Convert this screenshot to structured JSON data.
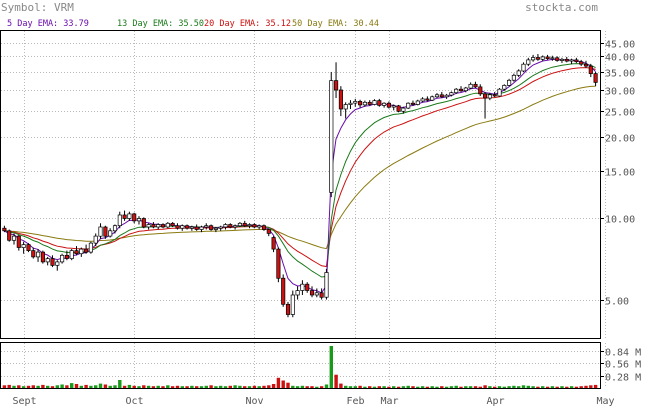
{
  "header": {
    "symbol_label": "Symbol: VRM",
    "site": "stockta.com"
  },
  "legend": [
    {
      "label": "5 Day EMA: 33.79",
      "color": "#6a0dad"
    },
    {
      "label": "13 Day EMA: 35.50",
      "color": "#1a7a1a"
    },
    {
      "label": "20 Day EMA: 35.12",
      "color": "#cc1111"
    },
    {
      "label": "50 Day EMA: 30.44",
      "color": "#8a7a10"
    }
  ],
  "colors": {
    "up": "#ffffff",
    "down": "#cc1111",
    "volume_up": "#1a9a1a",
    "volume_down": "#cc1111",
    "grid": "#bbbbbb",
    "text": "#555555"
  },
  "chart_data": [
    {
      "type": "candlestick",
      "scale": "log",
      "ylim": [
        3.6,
        48
      ],
      "y_ticks": [
        {
          "value": 45,
          "label": "45.00"
        },
        {
          "value": 40,
          "label": "40.00"
        },
        {
          "value": 35,
          "label": "35.00"
        },
        {
          "value": 30,
          "label": "30.00"
        },
        {
          "value": 25,
          "label": "25.00"
        },
        {
          "value": 20,
          "label": "20.00"
        },
        {
          "value": 15,
          "label": "15.00"
        },
        {
          "value": 10,
          "label": "10.00"
        },
        {
          "value": 5,
          "label": "5.00"
        }
      ],
      "x_ticks": [
        {
          "index": 4,
          "label": "Sept"
        },
        {
          "index": 27,
          "label": "Oct"
        },
        {
          "index": 52,
          "label": "Nov"
        },
        {
          "index": 73,
          "label": "Feb"
        },
        {
          "index": 80,
          "label": "Mar"
        },
        {
          "index": 102,
          "label": "Apr"
        },
        {
          "index": 125,
          "label": "May"
        }
      ],
      "candles": [
        [
          9.2,
          9.4,
          8.9,
          9.0
        ],
        [
          9.0,
          9.1,
          8.2,
          8.3
        ],
        [
          8.3,
          8.8,
          8.0,
          8.6
        ],
        [
          8.6,
          8.7,
          7.6,
          7.8
        ],
        [
          7.8,
          8.2,
          7.4,
          8.0
        ],
        [
          8.0,
          8.1,
          7.5,
          7.6
        ],
        [
          7.6,
          7.8,
          7.1,
          7.2
        ],
        [
          7.2,
          7.7,
          6.9,
          7.5
        ],
        [
          7.5,
          7.6,
          6.8,
          6.9
        ],
        [
          6.9,
          7.2,
          6.7,
          7.1
        ],
        [
          7.1,
          7.3,
          6.6,
          6.7
        ],
        [
          6.7,
          7.0,
          6.4,
          6.9
        ],
        [
          6.9,
          7.4,
          6.8,
          7.3
        ],
        [
          7.3,
          7.6,
          7.0,
          7.1
        ],
        [
          7.1,
          7.7,
          7.0,
          7.6
        ],
        [
          7.6,
          7.9,
          7.3,
          7.4
        ],
        [
          7.4,
          7.8,
          7.2,
          7.7
        ],
        [
          7.7,
          8.0,
          7.4,
          7.5
        ],
        [
          7.5,
          8.2,
          7.4,
          8.1
        ],
        [
          8.1,
          8.8,
          7.9,
          8.6
        ],
        [
          8.6,
          9.6,
          8.4,
          9.3
        ],
        [
          9.3,
          9.4,
          8.4,
          8.6
        ],
        [
          8.6,
          9.2,
          8.5,
          9.0
        ],
        [
          9.0,
          9.5,
          8.8,
          9.4
        ],
        [
          9.4,
          10.6,
          9.2,
          10.3
        ],
        [
          10.3,
          10.7,
          9.8,
          10.0
        ],
        [
          10.0,
          10.6,
          9.8,
          10.4
        ],
        [
          10.4,
          10.5,
          9.6,
          9.8
        ],
        [
          9.8,
          10.2,
          9.5,
          10.0
        ],
        [
          10.0,
          10.1,
          9.2,
          9.3
        ],
        [
          9.3,
          9.6,
          9.1,
          9.5
        ],
        [
          9.5,
          9.7,
          9.2,
          9.3
        ],
        [
          9.3,
          9.6,
          9.1,
          9.5
        ],
        [
          9.5,
          9.6,
          9.2,
          9.3
        ],
        [
          9.3,
          9.7,
          9.2,
          9.6
        ],
        [
          9.6,
          9.7,
          9.3,
          9.4
        ],
        [
          9.4,
          9.6,
          9.1,
          9.2
        ],
        [
          9.2,
          9.5,
          9.0,
          9.4
        ],
        [
          9.4,
          9.5,
          9.1,
          9.2
        ],
        [
          9.2,
          9.4,
          9.0,
          9.3
        ],
        [
          9.3,
          9.5,
          9.0,
          9.1
        ],
        [
          9.1,
          9.4,
          8.9,
          9.3
        ],
        [
          9.3,
          9.6,
          9.1,
          9.4
        ],
        [
          9.4,
          9.5,
          9.0,
          9.1
        ],
        [
          9.1,
          9.3,
          8.9,
          9.2
        ],
        [
          9.2,
          9.4,
          9.0,
          9.3
        ],
        [
          9.3,
          9.6,
          9.1,
          9.5
        ],
        [
          9.5,
          9.6,
          9.2,
          9.3
        ],
        [
          9.3,
          9.5,
          9.1,
          9.4
        ],
        [
          9.4,
          9.7,
          9.3,
          9.6
        ],
        [
          9.6,
          9.8,
          9.3,
          9.4
        ],
        [
          9.4,
          9.6,
          9.2,
          9.5
        ],
        [
          9.5,
          9.6,
          9.2,
          9.3
        ],
        [
          9.3,
          9.5,
          9.1,
          9.4
        ],
        [
          9.4,
          9.5,
          9.0,
          9.1
        ],
        [
          9.1,
          9.2,
          8.6,
          8.8
        ],
        [
          8.5,
          8.6,
          7.5,
          7.7
        ],
        [
          7.7,
          7.8,
          5.8,
          6.0
        ],
        [
          6.0,
          6.2,
          4.7,
          4.8
        ],
        [
          4.8,
          4.9,
          4.3,
          4.4
        ],
        [
          4.4,
          5.4,
          4.3,
          5.2
        ],
        [
          5.2,
          5.6,
          5.0,
          5.4
        ],
        [
          5.4,
          5.9,
          5.2,
          5.7
        ],
        [
          5.7,
          5.8,
          5.3,
          5.4
        ],
        [
          5.4,
          5.6,
          5.1,
          5.2
        ],
        [
          5.2,
          5.5,
          5.1,
          5.3
        ],
        [
          5.3,
          5.5,
          5.0,
          5.1
        ],
        [
          5.1,
          6.5,
          5.0,
          6.3
        ],
        [
          12.5,
          35.0,
          12.0,
          32.5
        ],
        [
          32.5,
          38.0,
          28.0,
          30.0
        ],
        [
          30.0,
          31.0,
          24.0,
          25.5
        ],
        [
          25.5,
          27.0,
          23.5,
          26.5
        ],
        [
          26.5,
          27.5,
          25.5,
          26.8
        ],
        [
          26.8,
          27.8,
          26.0,
          27.2
        ],
        [
          27.2,
          27.6,
          25.8,
          26.4
        ],
        [
          26.4,
          27.4,
          26.0,
          27.0
        ],
        [
          27.0,
          27.5,
          26.2,
          26.5
        ],
        [
          26.5,
          27.7,
          26.3,
          27.4
        ],
        [
          27.4,
          27.8,
          26.0,
          26.3
        ],
        [
          26.3,
          27.0,
          25.8,
          26.8
        ],
        [
          26.8,
          27.2,
          25.6,
          25.9
        ],
        [
          25.9,
          26.5,
          25.2,
          26.2
        ],
        [
          26.2,
          26.4,
          24.8,
          25.0
        ],
        [
          25.0,
          26.0,
          24.5,
          25.7
        ],
        [
          25.7,
          27.0,
          25.5,
          26.8
        ],
        [
          26.8,
          27.4,
          26.2,
          26.5
        ],
        [
          26.5,
          27.6,
          26.3,
          27.3
        ],
        [
          27.3,
          28.2,
          27.0,
          27.8
        ],
        [
          27.8,
          28.4,
          27.2,
          27.5
        ],
        [
          27.5,
          28.6,
          27.3,
          28.3
        ],
        [
          28.3,
          29.2,
          28.0,
          28.8
        ],
        [
          28.8,
          29.5,
          28.0,
          28.3
        ],
        [
          28.3,
          29.0,
          27.8,
          28.7
        ],
        [
          28.7,
          29.6,
          28.4,
          29.3
        ],
        [
          29.3,
          30.5,
          29.0,
          30.2
        ],
        [
          30.2,
          31.0,
          29.5,
          29.8
        ],
        [
          29.8,
          30.8,
          29.4,
          30.5
        ],
        [
          30.5,
          32.0,
          30.2,
          31.5
        ],
        [
          31.5,
          32.2,
          30.5,
          30.8
        ],
        [
          30.8,
          31.5,
          28.5,
          29.0
        ],
        [
          29.0,
          29.5,
          23.5,
          28.0
        ],
        [
          28.0,
          29.2,
          27.5,
          28.8
        ],
        [
          28.8,
          29.5,
          28.2,
          28.5
        ],
        [
          28.5,
          30.5,
          28.3,
          30.2
        ],
        [
          30.2,
          31.5,
          29.8,
          31.2
        ],
        [
          31.2,
          33.0,
          31.0,
          32.6
        ],
        [
          32.6,
          34.5,
          32.2,
          34.0
        ],
        [
          34.0,
          35.8,
          33.5,
          35.3
        ],
        [
          35.3,
          38.0,
          35.0,
          37.4
        ],
        [
          37.4,
          39.5,
          36.8,
          38.8
        ],
        [
          38.8,
          40.5,
          38.2,
          39.6
        ],
        [
          39.6,
          40.8,
          38.5,
          39.0
        ],
        [
          39.0,
          40.3,
          38.4,
          39.8
        ],
        [
          39.8,
          40.5,
          38.8,
          39.2
        ],
        [
          39.2,
          40.2,
          38.5,
          39.5
        ],
        [
          39.5,
          40.0,
          38.2,
          38.6
        ],
        [
          38.6,
          39.5,
          37.8,
          39.0
        ],
        [
          39.0,
          39.8,
          38.0,
          38.4
        ],
        [
          38.4,
          39.2,
          37.4,
          38.8
        ],
        [
          38.8,
          39.5,
          37.8,
          38.2
        ],
        [
          38.2,
          38.8,
          36.8,
          37.4
        ],
        [
          37.4,
          38.5,
          36.2,
          36.8
        ],
        [
          36.8,
          37.5,
          33.5,
          34.5
        ],
        [
          34.5,
          35.0,
          31.0,
          32.0
        ]
      ],
      "volume": {
        "scale_max": 0.95,
        "y_ticks": [
          {
            "value": 0.84,
            "label": "0.84 M"
          },
          {
            "value": 0.56,
            "label": "0.56 M"
          },
          {
            "value": 0.28,
            "label": "0.28 M"
          }
        ],
        "values": [
          0.06,
          0.07,
          0.05,
          0.06,
          0.04,
          0.05,
          0.06,
          0.05,
          0.07,
          0.05,
          0.04,
          0.06,
          0.08,
          0.06,
          0.11,
          0.09,
          0.05,
          0.07,
          0.05,
          0.06,
          0.1,
          0.08,
          0.05,
          0.06,
          0.18,
          0.05,
          0.07,
          0.05,
          0.04,
          0.06,
          0.05,
          0.04,
          0.05,
          0.04,
          0.06,
          0.04,
          0.05,
          0.04,
          0.04,
          0.05,
          0.04,
          0.04,
          0.05,
          0.06,
          0.04,
          0.05,
          0.04,
          0.05,
          0.06,
          0.05,
          0.04,
          0.04,
          0.05,
          0.04,
          0.05,
          0.06,
          0.09,
          0.23,
          0.17,
          0.12,
          0.05,
          0.04,
          0.05,
          0.04,
          0.04,
          0.03,
          0.04,
          0.08,
          0.95,
          0.3,
          0.1,
          0.05,
          0.04,
          0.04,
          0.05,
          0.03,
          0.04,
          0.03,
          0.04,
          0.04,
          0.03,
          0.04,
          0.03,
          0.04,
          0.05,
          0.04,
          0.03,
          0.04,
          0.03,
          0.04,
          0.03,
          0.04,
          0.03,
          0.04,
          0.05,
          0.03,
          0.04,
          0.04,
          0.04,
          0.03,
          0.06,
          0.04,
          0.03,
          0.04,
          0.03,
          0.04,
          0.05,
          0.04,
          0.06,
          0.05,
          0.04,
          0.03,
          0.04,
          0.03,
          0.04,
          0.03,
          0.04,
          0.03,
          0.04,
          0.03,
          0.04,
          0.05,
          0.06,
          0.07
        ]
      }
    }
  ]
}
